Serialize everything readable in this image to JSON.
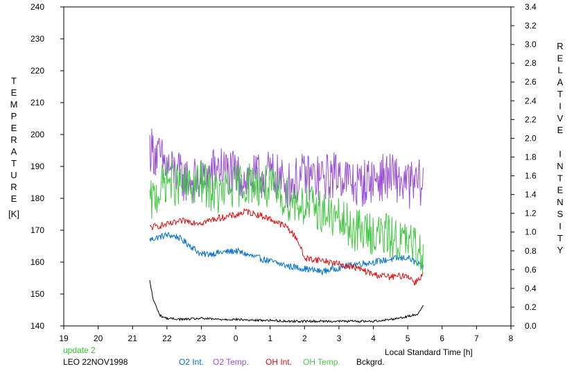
{
  "chart_data": {
    "type": "line",
    "ylabel_left": "TEMPERATURE",
    "ylabel_left_unit": "[K]",
    "ylabel_right": "RELATIVE INTENSITY",
    "xlabel": "Local Standard Time [h]",
    "x_ticks": [
      "19",
      "20",
      "21",
      "22",
      "23",
      "0",
      "1",
      "2",
      "3",
      "4",
      "5",
      "6",
      "7",
      "8"
    ],
    "xlim": [
      19,
      32
    ],
    "ylim_left": [
      140,
      240
    ],
    "ylim_right": [
      0.0,
      3.4
    ],
    "y_left_ticks": [
      140,
      150,
      160,
      170,
      180,
      190,
      200,
      210,
      220,
      230,
      240
    ],
    "y_right_ticks": [
      "0.0",
      "0.2",
      "0.4",
      "0.6",
      "0.8",
      "1.0",
      "1.2",
      "1.4",
      "1.6",
      "1.8",
      "2.0",
      "2.2",
      "2.4",
      "2.6",
      "2.8",
      "3.0",
      "3.2",
      "3.4"
    ],
    "status": "update 2",
    "site_date": "LEO 22NOV1998",
    "series": [
      {
        "name": "O2 Int.",
        "axis": "right",
        "color": "#0070d0",
        "x": [
          21.5,
          22.0,
          22.3,
          22.7,
          23.0,
          23.5,
          24.0,
          24.5,
          25.0,
          25.5,
          26.0,
          26.5,
          27.0,
          27.5,
          28.0,
          28.5,
          29.0,
          29.45
        ],
        "y": [
          0.92,
          0.97,
          0.95,
          0.85,
          0.76,
          0.78,
          0.8,
          0.74,
          0.69,
          0.64,
          0.61,
          0.58,
          0.62,
          0.66,
          0.68,
          0.71,
          0.73,
          0.62
        ]
      },
      {
        "name": "O2 Temp.",
        "axis": "left",
        "color": "#9b4fd6",
        "x": [
          21.5,
          22.0,
          22.5,
          23.0,
          23.5,
          24.0,
          24.5,
          25.0,
          25.5,
          26.0,
          26.5,
          27.0,
          27.5,
          28.0,
          28.5,
          29.0,
          29.45
        ],
        "y": [
          196,
          190,
          186,
          185,
          190,
          187,
          186,
          188,
          184,
          187,
          186,
          188,
          184,
          186,
          187,
          184,
          185
        ]
      },
      {
        "name": "OH Int.",
        "axis": "right",
        "color": "#e01010",
        "x": [
          21.5,
          22.0,
          22.5,
          23.0,
          23.5,
          24.0,
          24.3,
          24.7,
          25.0,
          25.5,
          25.8,
          26.0,
          26.5,
          27.0,
          27.5,
          28.0,
          28.5,
          29.0,
          29.2,
          29.45
        ],
        "y": [
          1.05,
          1.08,
          1.12,
          1.1,
          1.15,
          1.18,
          1.22,
          1.18,
          1.14,
          1.05,
          0.92,
          0.72,
          0.7,
          0.66,
          0.62,
          0.55,
          0.52,
          0.54,
          0.46,
          0.55
        ]
      },
      {
        "name": "OH Temp.",
        "axis": "left",
        "color": "#45c945",
        "x": [
          21.5,
          22.0,
          22.5,
          23.0,
          23.5,
          24.0,
          24.5,
          25.0,
          25.5,
          26.0,
          26.5,
          27.0,
          27.5,
          28.0,
          28.5,
          29.0,
          29.45
        ],
        "y": [
          178,
          186,
          183,
          185,
          181,
          184,
          185,
          183,
          180,
          178,
          176,
          173,
          170,
          169,
          168,
          166,
          163
        ]
      },
      {
        "name": "Bckgrd.",
        "axis": "right",
        "color": "#000000",
        "x": [
          21.5,
          21.6,
          21.8,
          22.0,
          22.5,
          23.0,
          23.5,
          24.0,
          24.5,
          25.0,
          25.5,
          26.0,
          26.5,
          27.0,
          27.5,
          28.0,
          28.5,
          29.0,
          29.3,
          29.45
        ],
        "y": [
          0.48,
          0.28,
          0.11,
          0.08,
          0.07,
          0.08,
          0.07,
          0.07,
          0.06,
          0.06,
          0.05,
          0.05,
          0.05,
          0.05,
          0.05,
          0.05,
          0.07,
          0.1,
          0.13,
          0.22
        ]
      }
    ]
  }
}
